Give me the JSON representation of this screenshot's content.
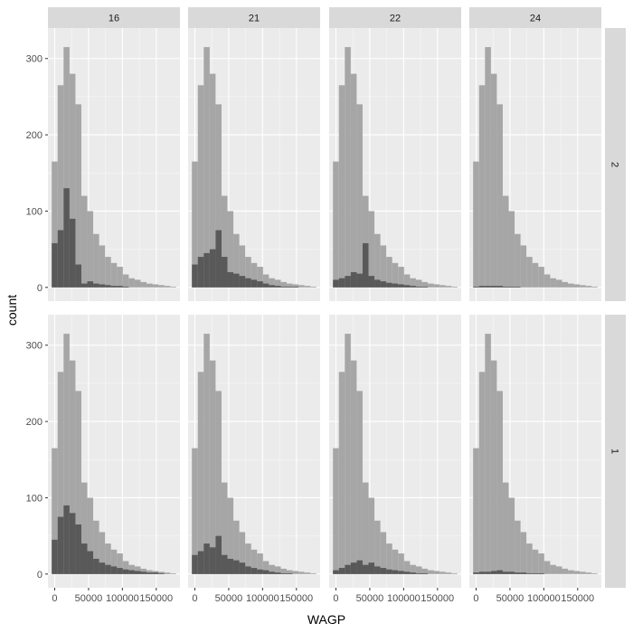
{
  "chart_data": {
    "type": "bar",
    "subtype": "faceted-histogram",
    "title": "",
    "xlabel": "WAGP",
    "ylabel": "count",
    "xlim": [
      -10000,
      185000
    ],
    "ylim": [
      -18,
      340
    ],
    "x_ticks": [
      0,
      50000,
      100000,
      150000
    ],
    "x_tick_labels": [
      "0",
      "50000",
      "100000",
      "150000"
    ],
    "y_ticks": [
      0,
      100,
      200,
      300
    ],
    "y_tick_labels": [
      "0",
      "100",
      "200",
      "300"
    ],
    "bin_width": 8750,
    "bin_starts": [
      -4375,
      4375,
      13125,
      21875,
      30625,
      39375,
      48125,
      56875,
      65625,
      74375,
      83125,
      91875,
      100625,
      109375,
      118125,
      126875,
      135625,
      144375,
      153125,
      161875,
      170625
    ],
    "column_facets": [
      "16",
      "21",
      "22",
      "24"
    ],
    "row_facets": [
      "2",
      "1"
    ],
    "grid": true,
    "colors": {
      "panel_background": "#ebebeb",
      "grid_major": "#ffffff",
      "strip_background": "#d9d9d9",
      "background_bars": "#a6a6a6",
      "highlight_bars": "#595959"
    },
    "panels": [
      {
        "row": "2",
        "col": "16",
        "background": [
          165,
          265,
          315,
          280,
          240,
          120,
          100,
          70,
          55,
          40,
          32,
          27,
          17,
          12,
          10,
          7,
          5,
          4,
          3,
          2,
          1
        ],
        "highlight": [
          58,
          75,
          130,
          90,
          30,
          5,
          8,
          5,
          4,
          3,
          2,
          2,
          1,
          0,
          0,
          0,
          0,
          0,
          0,
          0,
          0
        ]
      },
      {
        "row": "2",
        "col": "21",
        "background": [
          165,
          265,
          315,
          280,
          240,
          120,
          100,
          70,
          55,
          40,
          32,
          27,
          17,
          12,
          10,
          7,
          5,
          4,
          3,
          2,
          1
        ],
        "highlight": [
          30,
          40,
          45,
          50,
          75,
          40,
          20,
          18,
          15,
          12,
          10,
          8,
          5,
          3,
          2,
          1,
          1,
          1,
          0,
          0,
          0
        ]
      },
      {
        "row": "2",
        "col": "22",
        "background": [
          165,
          265,
          315,
          280,
          240,
          120,
          100,
          70,
          55,
          40,
          32,
          27,
          17,
          12,
          10,
          7,
          5,
          4,
          3,
          2,
          1
        ],
        "highlight": [
          10,
          12,
          15,
          20,
          18,
          58,
          15,
          10,
          8,
          6,
          5,
          4,
          3,
          2,
          1,
          1,
          0,
          0,
          0,
          0,
          0
        ]
      },
      {
        "row": "2",
        "col": "24",
        "background": [
          165,
          265,
          315,
          280,
          240,
          120,
          100,
          70,
          55,
          40,
          32,
          27,
          17,
          12,
          10,
          7,
          5,
          4,
          3,
          2,
          1
        ],
        "highlight": [
          1,
          2,
          2,
          2,
          2,
          1,
          1,
          1,
          0,
          0,
          0,
          0,
          0,
          0,
          0,
          0,
          0,
          0,
          0,
          0,
          0
        ]
      },
      {
        "row": "1",
        "col": "16",
        "background": [
          165,
          265,
          315,
          280,
          240,
          120,
          100,
          70,
          55,
          40,
          32,
          27,
          17,
          12,
          10,
          7,
          5,
          4,
          3,
          2,
          1
        ],
        "highlight": [
          45,
          75,
          90,
          80,
          65,
          40,
          30,
          20,
          15,
          12,
          10,
          8,
          6,
          5,
          4,
          3,
          2,
          2,
          1,
          0,
          0
        ]
      },
      {
        "row": "1",
        "col": "21",
        "background": [
          165,
          265,
          315,
          280,
          240,
          120,
          100,
          70,
          55,
          40,
          32,
          27,
          17,
          12,
          10,
          7,
          5,
          4,
          3,
          2,
          1
        ],
        "highlight": [
          25,
          30,
          40,
          35,
          50,
          25,
          20,
          18,
          15,
          10,
          8,
          6,
          5,
          3,
          2,
          1,
          1,
          0,
          0,
          0,
          0
        ]
      },
      {
        "row": "1",
        "col": "22",
        "background": [
          165,
          265,
          315,
          280,
          240,
          120,
          100,
          70,
          55,
          40,
          32,
          27,
          17,
          12,
          10,
          7,
          5,
          4,
          3,
          2,
          1
        ],
        "highlight": [
          5,
          8,
          12,
          15,
          18,
          12,
          15,
          10,
          8,
          6,
          5,
          4,
          3,
          2,
          1,
          1,
          0,
          0,
          0,
          0,
          0
        ]
      },
      {
        "row": "1",
        "col": "24",
        "background": [
          165,
          265,
          315,
          280,
          240,
          120,
          100,
          70,
          55,
          40,
          32,
          27,
          17,
          12,
          10,
          7,
          5,
          4,
          3,
          2,
          1
        ],
        "highlight": [
          2,
          3,
          3,
          4,
          5,
          3,
          3,
          2,
          2,
          1,
          1,
          1,
          0,
          0,
          0,
          0,
          0,
          0,
          0,
          0,
          0
        ]
      }
    ]
  }
}
